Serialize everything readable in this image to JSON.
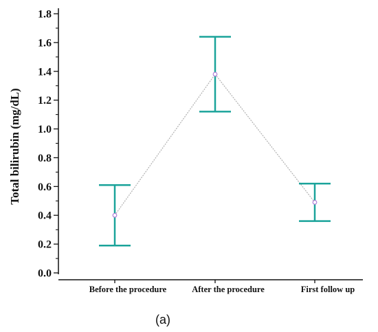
{
  "chart_data": {
    "type": "line",
    "title": "",
    "xlabel": "",
    "ylabel": "Total bilirubin (mg/dL)",
    "panel_label": "(a)",
    "categories": [
      "Before the procedure",
      "After the procedure",
      "First follow up"
    ],
    "series": [
      {
        "values": [
          0.4,
          1.38,
          0.49
        ],
        "error_low": [
          0.19,
          1.12,
          0.36
        ],
        "error_high": [
          0.61,
          1.64,
          0.62
        ]
      }
    ],
    "ylim": [
      0.0,
      1.8
    ],
    "yticks": [
      "0.0",
      "0.2",
      "0.4",
      "0.6",
      "0.8",
      "1.0",
      "1.2",
      "1.4",
      "1.6",
      "1.8"
    ],
    "grid": false,
    "colors": {
      "error_bar": "#1aa39a",
      "line": "#b0b0b0",
      "marker_stroke": "#b07cd8",
      "axis": "#111111"
    }
  }
}
